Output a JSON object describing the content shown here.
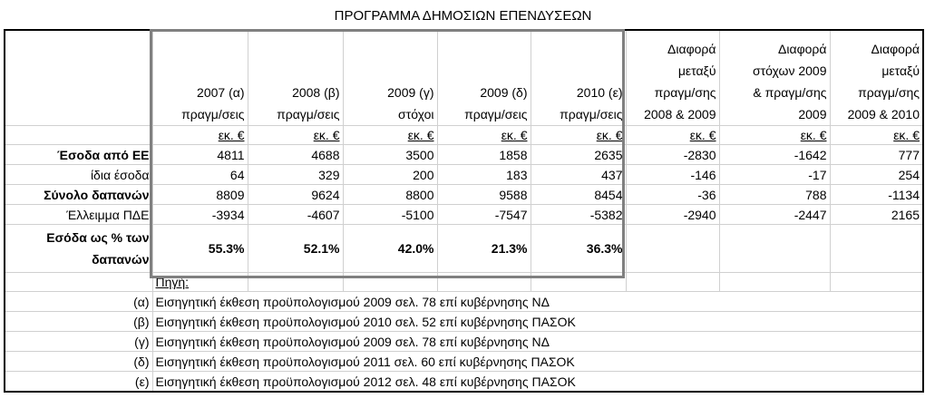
{
  "title": "ΠΡΟΓΡΑΜΜΑ ΔΗΜΟΣΙΩΝ ΕΠΕΝΔΥΣΕΩΝ",
  "header": {
    "columns": [
      [
        "2007 (α)",
        "πραγμ/σεις"
      ],
      [
        "2008 (β)",
        "πραγμ/σεις"
      ],
      [
        "2009 (γ)",
        "στόχοι"
      ],
      [
        "2009 (δ)",
        "πραγμ/σεις"
      ],
      [
        "2010 (ε)",
        "πραγμ/σεις"
      ],
      [
        "Διαφορά",
        "μεταξύ",
        "πραγμ/σης",
        "2008 & 2009"
      ],
      [
        "Διαφορά",
        "στόχων 2009",
        "& πραγμ/σης",
        "2009"
      ],
      [
        "Διαφορά",
        "μεταξύ",
        "πραγμ/σης",
        "2009 & 2010"
      ]
    ]
  },
  "units": [
    "εκ. €",
    "εκ. €",
    "εκ. €",
    "εκ. €",
    "εκ. €",
    "εκ. €",
    "εκ. €",
    "εκ. €"
  ],
  "rows": [
    {
      "label": "Έσοδα από ΕΕ",
      "bold": true,
      "cells": [
        "4811",
        "4688",
        "3500",
        "1858",
        "2635",
        "-2830",
        "-1642",
        "777"
      ]
    },
    {
      "label": "ίδια έσοδα",
      "cells": [
        "64",
        "329",
        "200",
        "183",
        "437",
        "-146",
        "-17",
        "254"
      ]
    },
    {
      "label": "Σύνολο δαπανών",
      "bold": true,
      "cells": [
        "8809",
        "9624",
        "8800",
        "9588",
        "8454",
        "-36",
        "788",
        "-1134"
      ]
    },
    {
      "label": "Έλλειμμα ΠΔΕ",
      "cells": [
        "-3934",
        "-4607",
        "-5100",
        "-7547",
        "-5382",
        "-2940",
        "-2447",
        "2165"
      ]
    }
  ],
  "ratio_row": {
    "label": [
      "Εσόδα ως % των",
      "δαπανών"
    ],
    "cells": [
      "55.3%",
      "52.1%",
      "42.0%",
      "21.3%",
      "36.3%"
    ]
  },
  "source": {
    "label": "Πηγή:",
    "notes": [
      {
        "key": "(α)",
        "text": "Εισηγητική έκθεση προϋπολογισμού 2009 σελ. 78 επί κυβέρνησης ΝΔ"
      },
      {
        "key": "(β)",
        "text": "Εισηγητική έκθεση προϋπολογισμού 2010 σελ. 52 επί κυβέρνησης ΠΑΣΟΚ"
      },
      {
        "key": "(γ)",
        "text": "Εισηγητική έκθεση προϋπολογισμού 2009 σελ. 78 επί κυβέρνησης ΝΔ"
      },
      {
        "key": "(δ)",
        "text": "Εισηγητική έκθεση προϋπολογισμού 2011 σελ. 60 επί κυβέρνησης ΠΑΣΟΚ"
      },
      {
        "key": "(ε)",
        "text": "Εισηγητική έκθεση προϋπολογισμού 2012 σελ. 48 επί κυβέρνησης ΠΑΣΟΚ"
      }
    ]
  }
}
